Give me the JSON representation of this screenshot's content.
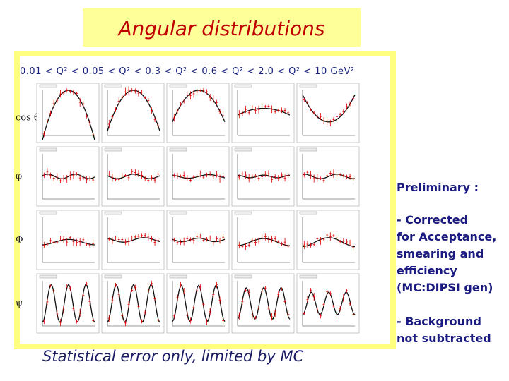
{
  "header": {
    "title": "Angular distributions"
  },
  "figure": {
    "bins_header": "0.01 < Q² < 0.05 < Q² < 0.3 < Q² < 0.6 < Q² < 2.0 < Q² < 10 GeV²",
    "row_labels": [
      "cos θ",
      "φ",
      "Φ",
      "ψ"
    ],
    "caption": "Statistical error only, limited by MC"
  },
  "notes": {
    "heading": "Preliminary :",
    "items": [
      [
        "- Corrected",
        "for Acceptance,",
        "smearing and",
        "efficiency",
        "(MC:DIPSI gen)"
      ],
      [
        "- Background",
        "not subtracted"
      ]
    ]
  }
}
